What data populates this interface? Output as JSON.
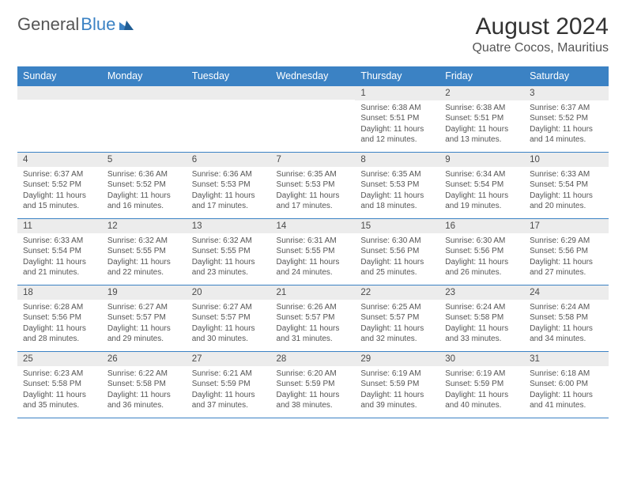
{
  "brand": {
    "name_a": "General",
    "name_b": "Blue"
  },
  "header": {
    "title": "August 2024",
    "location": "Quatre Cocos, Mauritius"
  },
  "weekdays": [
    "Sunday",
    "Monday",
    "Tuesday",
    "Wednesday",
    "Thursday",
    "Friday",
    "Saturday"
  ],
  "colors": {
    "header_bg": "#3b82c4",
    "header_fg": "#ffffff",
    "daynum_bg": "#ececec",
    "row_divider": "#3b82c4",
    "text": "#555555"
  },
  "weeks": [
    [
      {
        "day": "",
        "sunrise": "",
        "sunset": "",
        "daylight1": "",
        "daylight2": ""
      },
      {
        "day": "",
        "sunrise": "",
        "sunset": "",
        "daylight1": "",
        "daylight2": ""
      },
      {
        "day": "",
        "sunrise": "",
        "sunset": "",
        "daylight1": "",
        "daylight2": ""
      },
      {
        "day": "",
        "sunrise": "",
        "sunset": "",
        "daylight1": "",
        "daylight2": ""
      },
      {
        "day": "1",
        "sunrise": "Sunrise: 6:38 AM",
        "sunset": "Sunset: 5:51 PM",
        "daylight1": "Daylight: 11 hours",
        "daylight2": "and 12 minutes."
      },
      {
        "day": "2",
        "sunrise": "Sunrise: 6:38 AM",
        "sunset": "Sunset: 5:51 PM",
        "daylight1": "Daylight: 11 hours",
        "daylight2": "and 13 minutes."
      },
      {
        "day": "3",
        "sunrise": "Sunrise: 6:37 AM",
        "sunset": "Sunset: 5:52 PM",
        "daylight1": "Daylight: 11 hours",
        "daylight2": "and 14 minutes."
      }
    ],
    [
      {
        "day": "4",
        "sunrise": "Sunrise: 6:37 AM",
        "sunset": "Sunset: 5:52 PM",
        "daylight1": "Daylight: 11 hours",
        "daylight2": "and 15 minutes."
      },
      {
        "day": "5",
        "sunrise": "Sunrise: 6:36 AM",
        "sunset": "Sunset: 5:52 PM",
        "daylight1": "Daylight: 11 hours",
        "daylight2": "and 16 minutes."
      },
      {
        "day": "6",
        "sunrise": "Sunrise: 6:36 AM",
        "sunset": "Sunset: 5:53 PM",
        "daylight1": "Daylight: 11 hours",
        "daylight2": "and 17 minutes."
      },
      {
        "day": "7",
        "sunrise": "Sunrise: 6:35 AM",
        "sunset": "Sunset: 5:53 PM",
        "daylight1": "Daylight: 11 hours",
        "daylight2": "and 17 minutes."
      },
      {
        "day": "8",
        "sunrise": "Sunrise: 6:35 AM",
        "sunset": "Sunset: 5:53 PM",
        "daylight1": "Daylight: 11 hours",
        "daylight2": "and 18 minutes."
      },
      {
        "day": "9",
        "sunrise": "Sunrise: 6:34 AM",
        "sunset": "Sunset: 5:54 PM",
        "daylight1": "Daylight: 11 hours",
        "daylight2": "and 19 minutes."
      },
      {
        "day": "10",
        "sunrise": "Sunrise: 6:33 AM",
        "sunset": "Sunset: 5:54 PM",
        "daylight1": "Daylight: 11 hours",
        "daylight2": "and 20 minutes."
      }
    ],
    [
      {
        "day": "11",
        "sunrise": "Sunrise: 6:33 AM",
        "sunset": "Sunset: 5:54 PM",
        "daylight1": "Daylight: 11 hours",
        "daylight2": "and 21 minutes."
      },
      {
        "day": "12",
        "sunrise": "Sunrise: 6:32 AM",
        "sunset": "Sunset: 5:55 PM",
        "daylight1": "Daylight: 11 hours",
        "daylight2": "and 22 minutes."
      },
      {
        "day": "13",
        "sunrise": "Sunrise: 6:32 AM",
        "sunset": "Sunset: 5:55 PM",
        "daylight1": "Daylight: 11 hours",
        "daylight2": "and 23 minutes."
      },
      {
        "day": "14",
        "sunrise": "Sunrise: 6:31 AM",
        "sunset": "Sunset: 5:55 PM",
        "daylight1": "Daylight: 11 hours",
        "daylight2": "and 24 minutes."
      },
      {
        "day": "15",
        "sunrise": "Sunrise: 6:30 AM",
        "sunset": "Sunset: 5:56 PM",
        "daylight1": "Daylight: 11 hours",
        "daylight2": "and 25 minutes."
      },
      {
        "day": "16",
        "sunrise": "Sunrise: 6:30 AM",
        "sunset": "Sunset: 5:56 PM",
        "daylight1": "Daylight: 11 hours",
        "daylight2": "and 26 minutes."
      },
      {
        "day": "17",
        "sunrise": "Sunrise: 6:29 AM",
        "sunset": "Sunset: 5:56 PM",
        "daylight1": "Daylight: 11 hours",
        "daylight2": "and 27 minutes."
      }
    ],
    [
      {
        "day": "18",
        "sunrise": "Sunrise: 6:28 AM",
        "sunset": "Sunset: 5:56 PM",
        "daylight1": "Daylight: 11 hours",
        "daylight2": "and 28 minutes."
      },
      {
        "day": "19",
        "sunrise": "Sunrise: 6:27 AM",
        "sunset": "Sunset: 5:57 PM",
        "daylight1": "Daylight: 11 hours",
        "daylight2": "and 29 minutes."
      },
      {
        "day": "20",
        "sunrise": "Sunrise: 6:27 AM",
        "sunset": "Sunset: 5:57 PM",
        "daylight1": "Daylight: 11 hours",
        "daylight2": "and 30 minutes."
      },
      {
        "day": "21",
        "sunrise": "Sunrise: 6:26 AM",
        "sunset": "Sunset: 5:57 PM",
        "daylight1": "Daylight: 11 hours",
        "daylight2": "and 31 minutes."
      },
      {
        "day": "22",
        "sunrise": "Sunrise: 6:25 AM",
        "sunset": "Sunset: 5:57 PM",
        "daylight1": "Daylight: 11 hours",
        "daylight2": "and 32 minutes."
      },
      {
        "day": "23",
        "sunrise": "Sunrise: 6:24 AM",
        "sunset": "Sunset: 5:58 PM",
        "daylight1": "Daylight: 11 hours",
        "daylight2": "and 33 minutes."
      },
      {
        "day": "24",
        "sunrise": "Sunrise: 6:24 AM",
        "sunset": "Sunset: 5:58 PM",
        "daylight1": "Daylight: 11 hours",
        "daylight2": "and 34 minutes."
      }
    ],
    [
      {
        "day": "25",
        "sunrise": "Sunrise: 6:23 AM",
        "sunset": "Sunset: 5:58 PM",
        "daylight1": "Daylight: 11 hours",
        "daylight2": "and 35 minutes."
      },
      {
        "day": "26",
        "sunrise": "Sunrise: 6:22 AM",
        "sunset": "Sunset: 5:58 PM",
        "daylight1": "Daylight: 11 hours",
        "daylight2": "and 36 minutes."
      },
      {
        "day": "27",
        "sunrise": "Sunrise: 6:21 AM",
        "sunset": "Sunset: 5:59 PM",
        "daylight1": "Daylight: 11 hours",
        "daylight2": "and 37 minutes."
      },
      {
        "day": "28",
        "sunrise": "Sunrise: 6:20 AM",
        "sunset": "Sunset: 5:59 PM",
        "daylight1": "Daylight: 11 hours",
        "daylight2": "and 38 minutes."
      },
      {
        "day": "29",
        "sunrise": "Sunrise: 6:19 AM",
        "sunset": "Sunset: 5:59 PM",
        "daylight1": "Daylight: 11 hours",
        "daylight2": "and 39 minutes."
      },
      {
        "day": "30",
        "sunrise": "Sunrise: 6:19 AM",
        "sunset": "Sunset: 5:59 PM",
        "daylight1": "Daylight: 11 hours",
        "daylight2": "and 40 minutes."
      },
      {
        "day": "31",
        "sunrise": "Sunrise: 6:18 AM",
        "sunset": "Sunset: 6:00 PM",
        "daylight1": "Daylight: 11 hours",
        "daylight2": "and 41 minutes."
      }
    ]
  ]
}
